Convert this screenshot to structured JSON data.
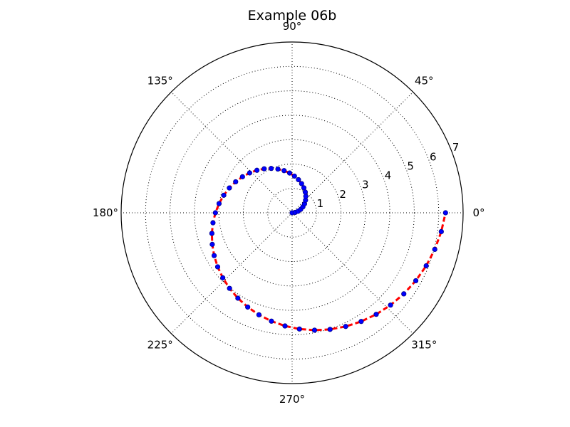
{
  "chart_data": {
    "type": "polar-line",
    "title": "Example 06b",
    "r_lim": [
      0,
      7
    ],
    "r_ticks": [
      1,
      2,
      3,
      4,
      5,
      6,
      7
    ],
    "theta_ticks_deg": [
      0,
      45,
      90,
      135,
      180,
      225,
      270,
      315
    ],
    "theta_tick_labels": [
      "0°",
      "45°",
      "90°",
      "135°",
      "180°",
      "225°",
      "270°",
      "315°"
    ],
    "grid": true,
    "series": [
      {
        "style": "line",
        "color": "#ff0000",
        "dash": "dashed",
        "points": []
      },
      {
        "style": "markers",
        "color": "#0000ff",
        "edge_color": "#00008b",
        "points": []
      }
    ],
    "curve": {
      "theta_deg_start": 0,
      "theta_deg_end": 360,
      "num_points": 51,
      "r_start": 0,
      "r_end": 6.28
    }
  }
}
